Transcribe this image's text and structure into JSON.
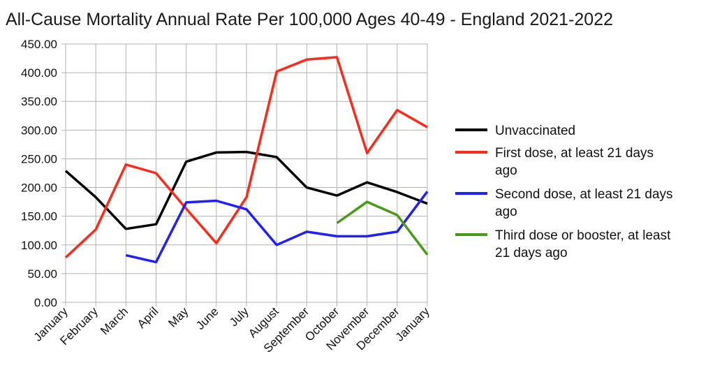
{
  "chart_data": {
    "type": "line",
    "title": "All-Cause Mortality Annual Rate Per 100,000 Ages 40-49 - England 2021-2022",
    "xlabel": "",
    "ylabel": "",
    "categories": [
      "January",
      "February",
      "March",
      "April",
      "May",
      "June",
      "July",
      "August",
      "September",
      "October",
      "November",
      "December",
      "January"
    ],
    "ylim": [
      0,
      450
    ],
    "yticks": [
      "0.00",
      "50.00",
      "100.00",
      "150.00",
      "200.00",
      "250.00",
      "300.00",
      "350.00",
      "400.00",
      "450.00"
    ],
    "grid": true,
    "legend_position": "right",
    "series": [
      {
        "name": "Unvaccinated",
        "legend_lines": [
          "Unvaccinated"
        ],
        "color": "#000000",
        "values": [
          229,
          183,
          128,
          136,
          245,
          261,
          262,
          253,
          200,
          186,
          209,
          192,
          172
        ]
      },
      {
        "name": "First dose, at least 21 days ago",
        "legend_lines": [
          "First dose, at least 21 days",
          "ago"
        ],
        "color": "#ff2a1a",
        "values": [
          78,
          127,
          240,
          225,
          163,
          103,
          183,
          402,
          423,
          427,
          260,
          335,
          305
        ]
      },
      {
        "name": "Second dose, at least 21 days ago",
        "legend_lines": [
          "Second dose, at least 21 days",
          "ago"
        ],
        "color": "#1f1fff",
        "values": [
          null,
          null,
          82,
          70,
          174,
          177,
          162,
          100,
          123,
          115,
          115,
          123,
          193
        ]
      },
      {
        "name": "Third dose or booster, at least 21 days ago",
        "legend_lines": [
          "Third dose or booster, at least",
          "21 days ago"
        ],
        "color": "#4a9a1a",
        "values": [
          null,
          null,
          null,
          null,
          null,
          null,
          null,
          null,
          null,
          138,
          175,
          152,
          83
        ]
      }
    ]
  }
}
